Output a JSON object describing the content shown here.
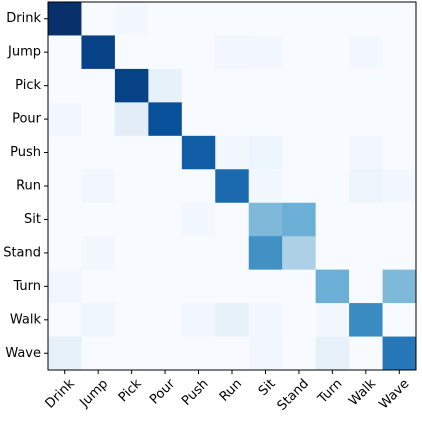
{
  "chart_data": {
    "type": "heatmap",
    "title": "",
    "xlabel": "",
    "ylabel": "",
    "row_labels": [
      "Drink",
      "Jump",
      "Pick",
      "Pour",
      "Push",
      "Run",
      "Sit",
      "Stand",
      "Turn",
      "Walk",
      "Wave"
    ],
    "col_labels": [
      "Drink",
      "Jump",
      "Pick",
      "Pour",
      "Push",
      "Run",
      "Sit",
      "Stand",
      "Turn",
      "Walk",
      "Wave"
    ],
    "colormap": "Blues",
    "value_range": [
      0,
      1
    ],
    "values": [
      [
        1.0,
        0.0,
        0.02,
        0.0,
        0.0,
        0.0,
        0.0,
        0.0,
        0.0,
        0.0,
        0.0
      ],
      [
        0.0,
        0.93,
        0.0,
        0.0,
        0.0,
        0.03,
        0.02,
        0.0,
        0.0,
        0.02,
        0.0
      ],
      [
        0.0,
        0.0,
        0.93,
        0.08,
        0.0,
        0.0,
        0.0,
        0.0,
        0.0,
        0.0,
        0.0
      ],
      [
        0.02,
        0.0,
        0.1,
        0.88,
        0.0,
        0.0,
        0.0,
        0.0,
        0.0,
        0.0,
        0.0
      ],
      [
        0.0,
        0.0,
        0.0,
        0.0,
        0.83,
        0.02,
        0.05,
        0.0,
        0.0,
        0.03,
        0.0
      ],
      [
        0.0,
        0.03,
        0.0,
        0.0,
        0.0,
        0.78,
        0.02,
        0.0,
        0.0,
        0.05,
        0.02
      ],
      [
        0.0,
        0.0,
        0.0,
        0.0,
        0.02,
        0.0,
        0.45,
        0.5,
        0.0,
        0.0,
        0.0
      ],
      [
        0.0,
        0.02,
        0.0,
        0.0,
        0.0,
        0.0,
        0.63,
        0.33,
        0.0,
        0.0,
        0.0
      ],
      [
        0.03,
        0.0,
        0.0,
        0.0,
        0.0,
        0.0,
        0.0,
        0.0,
        0.5,
        0.0,
        0.45
      ],
      [
        0.0,
        0.04,
        0.0,
        0.0,
        0.03,
        0.08,
        0.02,
        0.0,
        0.02,
        0.65,
        0.0
      ],
      [
        0.08,
        0.0,
        0.0,
        0.0,
        0.0,
        0.0,
        0.03,
        0.0,
        0.08,
        0.0,
        0.73
      ]
    ]
  }
}
